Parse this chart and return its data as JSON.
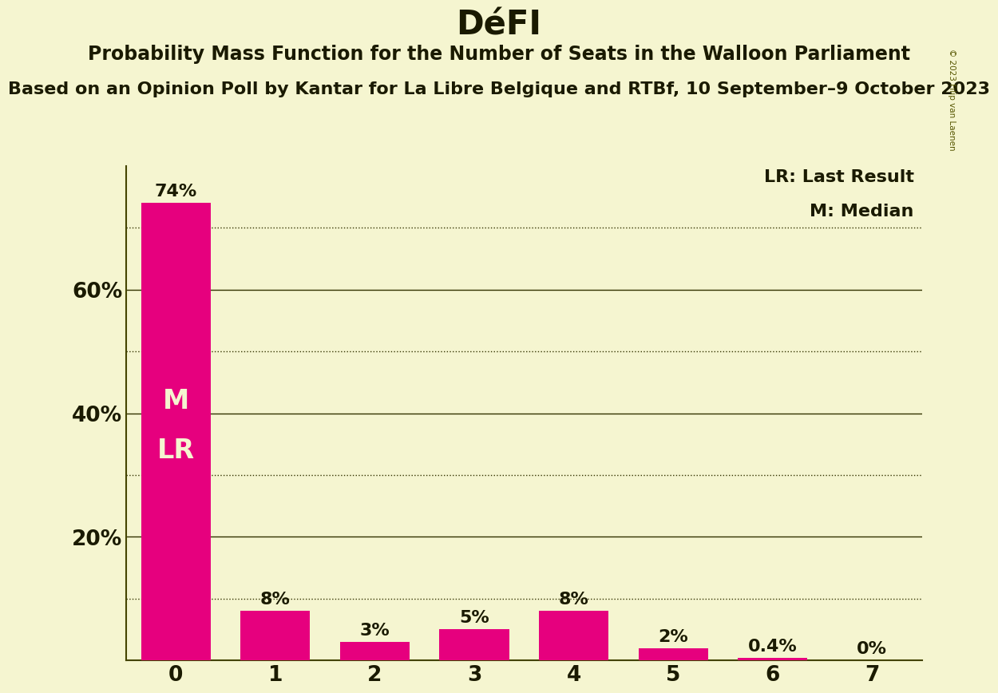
{
  "title": "DéFI",
  "subtitle": "Probability Mass Function for the Number of Seats in the Walloon Parliament",
  "sub_subtitle": "Based on an Opinion Poll by Kantar for La Libre Belgique and RTBf, 10 September–9 October 2023",
  "copyright": "© 2023 Filip van Laenen",
  "categories": [
    0,
    1,
    2,
    3,
    4,
    5,
    6,
    7
  ],
  "values": [
    0.74,
    0.08,
    0.03,
    0.05,
    0.08,
    0.02,
    0.004,
    0.0
  ],
  "bar_color": "#e6007e",
  "background_color": "#f5f5d0",
  "bar_labels": [
    "74%",
    "8%",
    "3%",
    "5%",
    "8%",
    "2%",
    "0.4%",
    "0%"
  ],
  "bar_label_color": "#1a1a00",
  "bar_text_inside_line1": "M",
  "bar_text_inside_line2": "LR",
  "bar_text_color_inside": "#f5f5d0",
  "ylim": [
    0,
    0.8
  ],
  "ytick_vals": [
    0.0,
    0.2,
    0.4,
    0.6
  ],
  "ytick_labels": [
    "",
    "20%",
    "40%",
    "60%"
  ],
  "dotted_lines": [
    0.1,
    0.3,
    0.5,
    0.7
  ],
  "solid_lines": [
    0.2,
    0.4,
    0.6
  ],
  "legend_lr": "LR: Last Result",
  "legend_m": "M: Median",
  "title_fontsize": 30,
  "subtitle_fontsize": 17,
  "sub_subtitle_fontsize": 16,
  "bar_label_fontsize": 16,
  "inside_text_fontsize": 24,
  "tick_fontsize": 19,
  "legend_fontsize": 16,
  "xlabel": "",
  "ylabel": ""
}
